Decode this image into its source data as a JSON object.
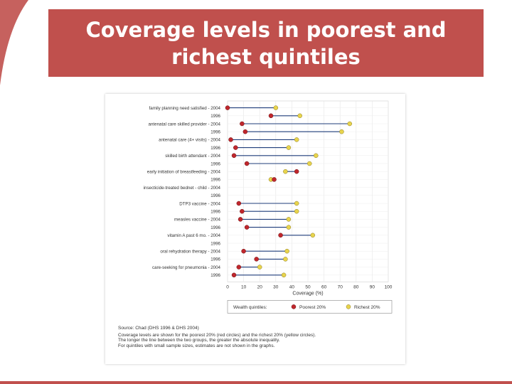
{
  "slide": {
    "title": "Coverage levels in poorest and richest quintiles",
    "accent_color": "#c0504d"
  },
  "chart_data": {
    "type": "scatter",
    "title": "",
    "xlabel": "Coverage (%)",
    "xlim": [
      0,
      100
    ],
    "x_ticks": [
      0,
      10,
      20,
      30,
      40,
      50,
      60,
      70,
      80,
      90,
      100
    ],
    "grid": true,
    "legend": {
      "placement": "bottom",
      "title": "Wealth quintiles:",
      "entries": [
        {
          "name": "Poorest 20%",
          "color": "#c0272d"
        },
        {
          "name": "Richest 20%",
          "color": "#e8d44d"
        }
      ]
    },
    "connector_color": "#1f3d7a",
    "indicators": [
      {
        "label": "family planning need satisfied - 2004",
        "year_label": "1996",
        "rows": [
          {
            "year": "2004",
            "poorest": 0,
            "richest": 30
          },
          {
            "year": "1996",
            "poorest": 27,
            "richest": 45
          }
        ]
      },
      {
        "label": "antenatal care skilled provider - 2004",
        "year_label": "1996",
        "rows": [
          {
            "year": "2004",
            "poorest": 9,
            "richest": 76
          },
          {
            "year": "1996",
            "poorest": 11,
            "richest": 71
          }
        ]
      },
      {
        "label": "antenatal care (4+ visits) - 2004",
        "year_label": "1996",
        "rows": [
          {
            "year": "2004",
            "poorest": 2,
            "richest": 43
          },
          {
            "year": "1996",
            "poorest": 5,
            "richest": 38
          }
        ]
      },
      {
        "label": "skilled birth attendant - 2004",
        "year_label": "1996",
        "rows": [
          {
            "year": "2004",
            "poorest": 4,
            "richest": 55
          },
          {
            "year": "1996",
            "poorest": 12,
            "richest": 51
          }
        ]
      },
      {
        "label": "early initiation of breastfeeding - 2004",
        "year_label": "1996",
        "rows": [
          {
            "year": "2004",
            "poorest": 43,
            "richest": 36
          },
          {
            "year": "1996",
            "poorest": 29,
            "richest": 27
          }
        ]
      },
      {
        "label": "insecticide-treated bednet - child - 2004",
        "year_label": "1996",
        "rows": [
          {
            "year": "2004",
            "poorest": null,
            "richest": null
          },
          {
            "year": "1996",
            "poorest": null,
            "richest": null
          }
        ]
      },
      {
        "label": "DTP3 vaccine - 2004",
        "year_label": "1996",
        "rows": [
          {
            "year": "2004",
            "poorest": 7,
            "richest": 43
          },
          {
            "year": "1996",
            "poorest": 9,
            "richest": 43
          }
        ]
      },
      {
        "label": "measles vaccine - 2004",
        "year_label": "1996",
        "rows": [
          {
            "year": "2004",
            "poorest": 8,
            "richest": 38
          },
          {
            "year": "1996",
            "poorest": 12,
            "richest": 38
          }
        ]
      },
      {
        "label": "vitamin A past 6 mo. - 2004",
        "year_label": "1996",
        "rows": [
          {
            "year": "2004",
            "poorest": 33,
            "richest": 53
          },
          {
            "year": "1996",
            "poorest": null,
            "richest": null
          }
        ]
      },
      {
        "label": "oral rehydration therapy - 2004",
        "year_label": "1996",
        "rows": [
          {
            "year": "2004",
            "poorest": 10,
            "richest": 37
          },
          {
            "year": "1996",
            "poorest": 18,
            "richest": 36
          }
        ]
      },
      {
        "label": "care-seeking for pneumonia - 2004",
        "year_label": "1996",
        "rows": [
          {
            "year": "2004",
            "poorest": 7,
            "richest": 20
          },
          {
            "year": "1996",
            "poorest": 4,
            "richest": 35
          }
        ]
      }
    ]
  },
  "notes": {
    "source": "Source: Chad (DHS 1996 & DHS 2004)",
    "lines": [
      "Coverage levels are shown for the poorest 20% (red circles) and the richest 20% (yellow circles).",
      "The longer the line between the two groups, the greater the absolute inequality.",
      "For quintiles with small sample sizes, estimates are not shown in the graphs."
    ]
  }
}
